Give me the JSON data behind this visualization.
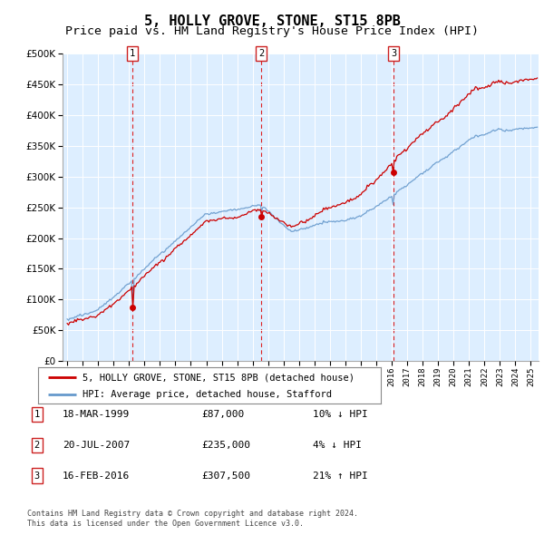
{
  "title": "5, HOLLY GROVE, STONE, ST15 8PB",
  "subtitle": "Price paid vs. HM Land Registry's House Price Index (HPI)",
  "title_fontsize": 11,
  "subtitle_fontsize": 9.5,
  "legend_label_red": "5, HOLLY GROVE, STONE, ST15 8PB (detached house)",
  "legend_label_blue": "HPI: Average price, detached house, Stafford",
  "footer_line1": "Contains HM Land Registry data © Crown copyright and database right 2024.",
  "footer_line2": "This data is licensed under the Open Government Licence v3.0.",
  "sale_points": [
    {
      "label": "1",
      "date_num": 1999.21,
      "price": 87000,
      "note": "18-MAR-1999",
      "amount": "£87,000",
      "hpi_note": "10% ↓ HPI"
    },
    {
      "label": "2",
      "date_num": 2007.55,
      "price": 235000,
      "note": "20-JUL-2007",
      "amount": "£235,000",
      "hpi_note": "4% ↓ HPI"
    },
    {
      "label": "3",
      "date_num": 2016.12,
      "price": 307500,
      "note": "16-FEB-2016",
      "amount": "£307,500",
      "hpi_note": "21% ↑ HPI"
    }
  ],
  "ylim": [
    0,
    500000
  ],
  "yticks": [
    0,
    50000,
    100000,
    150000,
    200000,
    250000,
    300000,
    350000,
    400000,
    450000,
    500000
  ],
  "xlim_start": 1994.7,
  "xlim_end": 2025.5,
  "red_color": "#cc0000",
  "blue_color": "#6699cc",
  "plot_bg": "#ddeeff",
  "grid_color": "#ffffff"
}
